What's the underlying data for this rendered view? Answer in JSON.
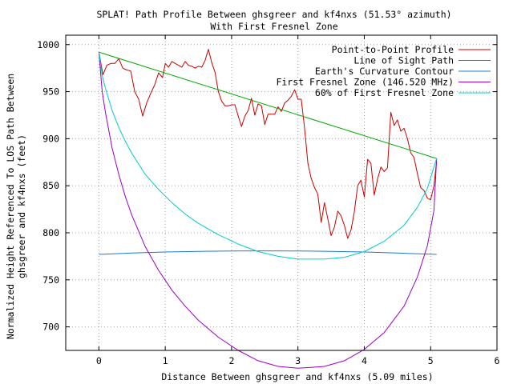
{
  "chart_data": {
    "type": "line",
    "title": "SPLAT! Path Profile Between ghsgreer and kf4nxs (51.53° azimuth)",
    "subtitle": "With First Fresnel Zone",
    "xlabel": "Distance Between ghsgreer and kf4nxs (5.09 miles)",
    "ylabel_line1": "Normalized Height Referenced To LOS Path Between",
    "ylabel_line2": "ghsgreer and kf4nxs (feet)",
    "xlim": [
      -0.5,
      6
    ],
    "ylim": [
      675,
      1010
    ],
    "x_ticks": [
      0,
      1,
      2,
      3,
      4,
      5,
      6
    ],
    "x_tick_labels": [
      "0",
      "1",
      "2",
      "3",
      "4",
      "5",
      "6"
    ],
    "y_ticks": [
      700,
      750,
      800,
      850,
      900,
      950,
      1000
    ],
    "y_tick_labels": [
      "700",
      "750",
      "800",
      "850",
      "900",
      "950",
      "1000"
    ],
    "grid": true,
    "legend_position": "top-right",
    "series": [
      {
        "name": "Point-to-Point Profile",
        "color": "#cc0000",
        "x": [
          0,
          0.06,
          0.12,
          0.18,
          0.24,
          0.3,
          0.36,
          0.42,
          0.48,
          0.54,
          0.6,
          0.66,
          0.72,
          0.78,
          0.84,
          0.9,
          0.96,
          1.0,
          1.05,
          1.1,
          1.15,
          1.2,
          1.25,
          1.3,
          1.35,
          1.4,
          1.45,
          1.5,
          1.55,
          1.6,
          1.65,
          1.7,
          1.75,
          1.8,
          1.85,
          1.9,
          1.95,
          2.0,
          2.05,
          2.1,
          2.15,
          2.2,
          2.25,
          2.3,
          2.35,
          2.4,
          2.45,
          2.5,
          2.55,
          2.6,
          2.65,
          2.7,
          2.75,
          2.8,
          2.85,
          2.9,
          2.95,
          3.0,
          3.05,
          3.1,
          3.15,
          3.2,
          3.25,
          3.3,
          3.35,
          3.4,
          3.45,
          3.5,
          3.55,
          3.6,
          3.65,
          3.7,
          3.75,
          3.8,
          3.85,
          3.9,
          3.95,
          4.0,
          4.05,
          4.1,
          4.15,
          4.2,
          4.25,
          4.3,
          4.35,
          4.4,
          4.45,
          4.5,
          4.55,
          4.6,
          4.65,
          4.7,
          4.75,
          4.8,
          4.85,
          4.9,
          4.95,
          5.0,
          5.05,
          5.09
        ],
        "y": [
          992,
          968,
          978,
          980,
          980,
          985,
          975,
          973,
          972,
          950,
          942,
          924,
          938,
          948,
          957,
          970,
          965,
          980,
          976,
          982,
          980,
          978,
          976,
          982,
          978,
          977,
          975,
          977,
          976,
          983,
          995,
          981,
          971,
          950,
          940,
          935,
          935,
          936,
          936,
          924,
          913,
          924,
          930,
          943,
          925,
          937,
          935,
          915,
          926,
          926,
          926,
          934,
          929,
          938,
          941,
          945,
          952,
          942,
          942,
          911,
          874,
          858,
          848,
          841,
          811,
          832,
          815,
          797,
          806,
          823,
          818,
          808,
          794,
          803,
          822,
          850,
          856,
          838,
          878,
          874,
          840,
          857,
          870,
          865,
          869,
          928,
          914,
          920,
          908,
          911,
          900,
          885,
          880,
          863,
          848,
          845,
          837,
          835,
          850,
          876
        ]
      },
      {
        "name": "Line of Sight Path",
        "color": "#00aa00",
        "x": [
          0,
          5.09
        ],
        "y": [
          992,
          879
        ]
      },
      {
        "name": "Earth's Curvature Contour",
        "color": "#1f78c8",
        "x": [
          0,
          0.5,
          1,
          1.5,
          2,
          2.5,
          3,
          3.5,
          4,
          4.5,
          5.09
        ],
        "y": [
          777,
          778.5,
          779.6,
          780.3,
          780.7,
          780.8,
          780.7,
          780.3,
          779.6,
          778.5,
          777
        ]
      },
      {
        "name": "First Fresnel Zone (146.520 MHz)",
        "color": "#9900cc",
        "x": [
          0,
          0.05,
          0.1,
          0.2,
          0.3,
          0.4,
          0.5,
          0.7,
          0.9,
          1.1,
          1.3,
          1.5,
          1.8,
          2.1,
          2.4,
          2.7,
          3.0,
          3.2,
          3.4,
          3.7,
          4.0,
          4.3,
          4.6,
          4.8,
          4.95,
          5.05,
          5.09
        ],
        "y": [
          992,
          950,
          927,
          890,
          862,
          838,
          818,
          785,
          760,
          739,
          722,
          707,
          689,
          675,
          664,
          658,
          656,
          657,
          658,
          664,
          676,
          694,
          722,
          753,
          786,
          824,
          879
        ]
      },
      {
        "name": "60% of First Fresnel Zone",
        "color": "#00cccc",
        "x": [
          0,
          0.05,
          0.1,
          0.2,
          0.3,
          0.4,
          0.5,
          0.7,
          0.9,
          1.1,
          1.3,
          1.5,
          1.8,
          2.1,
          2.4,
          2.7,
          3.0,
          3.2,
          3.4,
          3.7,
          4.0,
          4.3,
          4.6,
          4.8,
          4.95,
          5.05,
          5.09
        ],
        "y": [
          992,
          967,
          953,
          930,
          912,
          897,
          884,
          862,
          846,
          832,
          820,
          810,
          798,
          788,
          780,
          775,
          772,
          772,
          772,
          774,
          780,
          791,
          808,
          827,
          847,
          870,
          879
        ]
      }
    ]
  }
}
